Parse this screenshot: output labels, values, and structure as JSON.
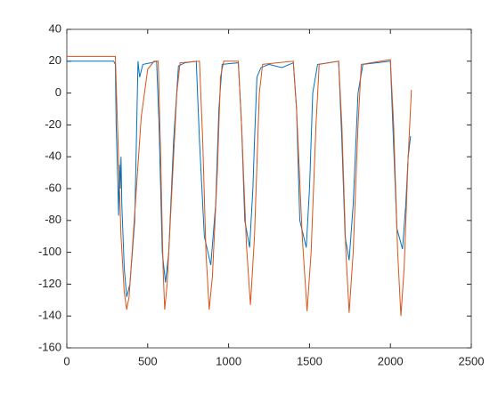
{
  "chart_data": {
    "type": "line",
    "xlim": [
      0,
      2500
    ],
    "xticks": [
      0,
      500,
      1000,
      1500,
      2000,
      2500
    ],
    "ylim": [
      -160,
      40
    ],
    "yticks": [
      -160,
      -140,
      -120,
      -100,
      -80,
      -60,
      -40,
      -20,
      0,
      20,
      40
    ],
    "grid": false,
    "series": [
      {
        "color": "#0072BD",
        "x": [
          0,
          290,
          300,
          305,
          315,
          320,
          325,
          330,
          335,
          340,
          355,
          370,
          390,
          420,
          440,
          450,
          470,
          520,
          555,
          570,
          590,
          610,
          630,
          660,
          690,
          730,
          800,
          820,
          850,
          890,
          920,
          940,
          960,
          1060,
          1080,
          1100,
          1130,
          1150,
          1160,
          1175,
          1200,
          1250,
          1330,
          1400,
          1420,
          1440,
          1480,
          1500,
          1520,
          1550,
          1680,
          1700,
          1720,
          1745,
          1770,
          1800,
          1830,
          2000,
          2015,
          2040,
          2075,
          2095,
          2110,
          2125
        ],
        "values": [
          20,
          20,
          18,
          -20,
          -55,
          -77,
          -45,
          -60,
          -40,
          -70,
          -110,
          -128,
          -120,
          -80,
          20,
          10,
          18,
          19,
          20,
          -20,
          -100,
          -119,
          -100,
          -30,
          17,
          19,
          20,
          -30,
          -90,
          -108,
          -70,
          -10,
          18,
          19,
          -20,
          -80,
          -97,
          -60,
          -30,
          10,
          16,
          18,
          16,
          19,
          -10,
          -80,
          -97,
          -60,
          0,
          18,
          20,
          -30,
          -90,
          -105,
          -70,
          0,
          18,
          20,
          -20,
          -85,
          -98,
          -70,
          -40,
          -27
        ]
      },
      {
        "color": "#D95319",
        "x": [
          0,
          300,
          310,
          335,
          355,
          370,
          385,
          420,
          460,
          500,
          540,
          565,
          580,
          595,
          605,
          620,
          650,
          680,
          700,
          820,
          840,
          860,
          880,
          900,
          930,
          950,
          970,
          1060,
          1080,
          1110,
          1135,
          1160,
          1190,
          1210,
          1300,
          1400,
          1420,
          1455,
          1485,
          1510,
          1540,
          1560,
          1680,
          1700,
          1725,
          1745,
          1770,
          1800,
          1820,
          2000,
          2020,
          2045,
          2065,
          2085,
          2110,
          2130
        ],
        "values": [
          23,
          23,
          -10,
          -90,
          -125,
          -136,
          -128,
          -75,
          -15,
          15,
          20,
          20,
          -40,
          -110,
          -136,
          -120,
          -60,
          0,
          19,
          20,
          -30,
          -100,
          -136,
          -115,
          -50,
          10,
          20,
          20,
          -20,
          -95,
          -133,
          -90,
          0,
          18,
          19,
          20,
          -10,
          -90,
          -137,
          -100,
          -20,
          18,
          20,
          -20,
          -100,
          -138,
          -100,
          -20,
          18,
          21,
          -20,
          -100,
          -140,
          -110,
          -40,
          2
        ]
      }
    ]
  }
}
